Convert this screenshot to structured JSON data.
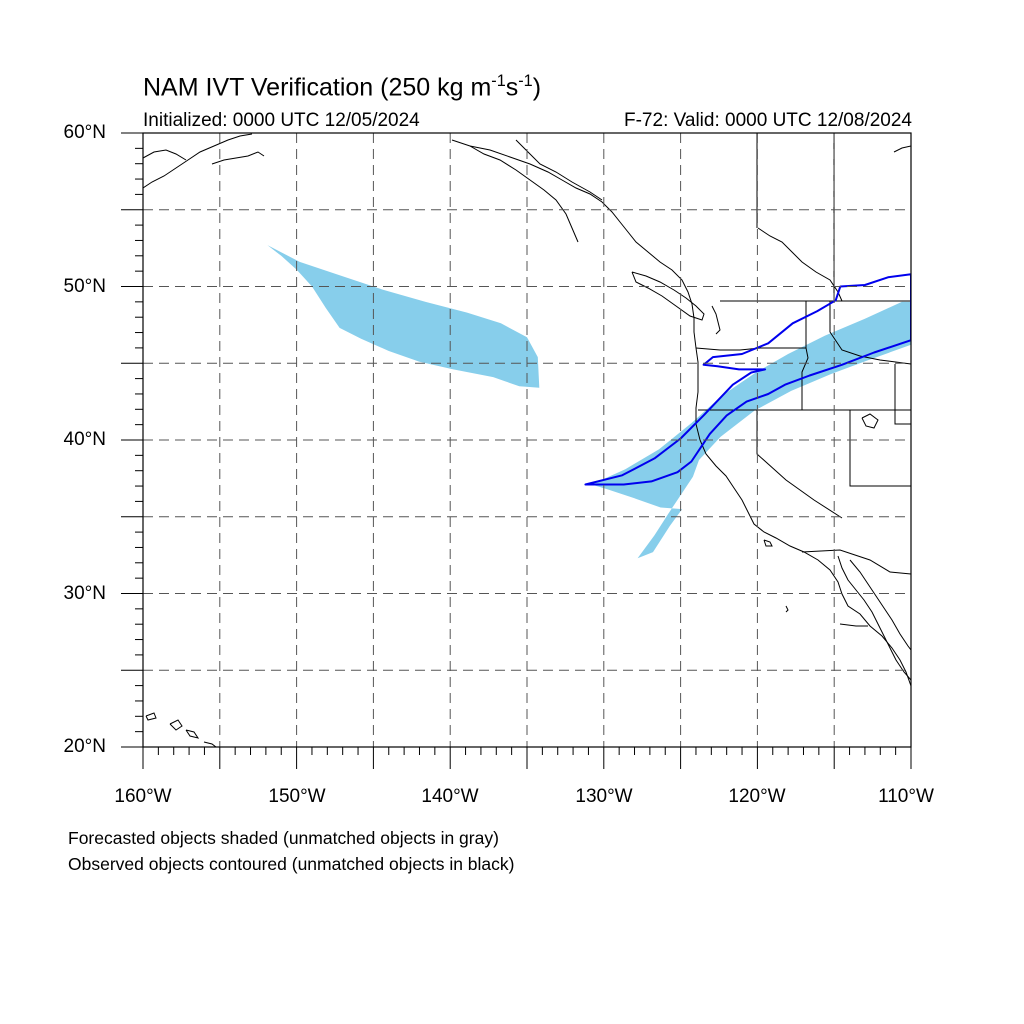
{
  "title": {
    "main": "NAM IVT Verification (250 kg m",
    "sup1": "-1",
    "mid": "s",
    "sup2": "-1",
    "end": ")"
  },
  "initialized": "Initialized: 0000 UTC 12/05/2024",
  "valid": "F-72: Valid: 0000 UTC 12/08/2024",
  "lat_labels": [
    "60°N",
    "50°N",
    "40°N",
    "30°N",
    "20°N"
  ],
  "lon_labels": [
    "160°W",
    "150°W",
    "140°W",
    "130°W",
    "120°W",
    "110°W"
  ],
  "footnotes": [
    "Forecasted objects shaded (unmatched objects in gray)",
    "Observed objects contoured (unmatched objects in black)"
  ],
  "map": {
    "lon_range": [
      -160,
      -110
    ],
    "lat_range": [
      20,
      60
    ],
    "grid_lons": [
      -155,
      -150,
      -145,
      -140,
      -135,
      -130,
      -125,
      -120,
      -115
    ],
    "grid_lats": [
      25,
      30,
      35,
      40,
      45,
      50,
      55
    ],
    "colors": {
      "forecast_fill": "#87ceeb",
      "observed_contour": "#0000ee",
      "coastline": "#000000",
      "grid": "#555555"
    },
    "forecast_objects": [
      {
        "name": "north-pacific-forecast-object",
        "points": [
          [
            -151.9,
            52.7
          ],
          [
            -149.8,
            51.6
          ],
          [
            -147.1,
            50.7
          ],
          [
            -144.4,
            49.8
          ],
          [
            -141.6,
            49.0
          ],
          [
            -138.9,
            48.3
          ],
          [
            -136.7,
            47.6
          ],
          [
            -135.0,
            46.7
          ],
          [
            -134.3,
            45.4
          ],
          [
            -134.2,
            43.4
          ],
          [
            -135.5,
            43.5
          ],
          [
            -137.2,
            44.1
          ],
          [
            -139.8,
            44.6
          ],
          [
            -142.0,
            45.1
          ],
          [
            -144.0,
            45.8
          ],
          [
            -145.8,
            46.6
          ],
          [
            -147.2,
            47.3
          ],
          [
            -148.1,
            48.6
          ],
          [
            -149.0,
            50.0
          ],
          [
            -150.0,
            51.1
          ],
          [
            -151.0,
            52.0
          ]
        ]
      },
      {
        "name": "atmospheric-river-forecast-object",
        "points": [
          [
            -130.8,
            37.1
          ],
          [
            -128.6,
            38.1
          ],
          [
            -126.4,
            39.4
          ],
          [
            -124.3,
            41.1
          ],
          [
            -122.3,
            42.9
          ],
          [
            -120.1,
            44.4
          ],
          [
            -118.0,
            45.6
          ],
          [
            -115.6,
            46.8
          ],
          [
            -113.0,
            47.9
          ],
          [
            -110.6,
            49.0
          ],
          [
            -110.0,
            49.0
          ],
          [
            -110.0,
            46.2
          ],
          [
            -112.8,
            45.2
          ],
          [
            -115.2,
            44.3
          ],
          [
            -117.8,
            43.2
          ],
          [
            -120.2,
            41.9
          ],
          [
            -122.4,
            40.2
          ],
          [
            -123.8,
            38.7
          ],
          [
            -124.2,
            37.6
          ],
          [
            -125.0,
            36.4
          ],
          [
            -125.8,
            35.2
          ],
          [
            -126.7,
            33.8
          ],
          [
            -127.8,
            32.3
          ],
          [
            -126.8,
            32.7
          ],
          [
            -125.7,
            34.4
          ],
          [
            -124.9,
            35.5
          ],
          [
            -126.3,
            35.6
          ],
          [
            -128.0,
            36.2
          ],
          [
            -129.8,
            36.8
          ]
        ]
      }
    ],
    "observed_objects": [
      {
        "name": "observed-ar-contour",
        "points": [
          [
            -131.2,
            37.1
          ],
          [
            -128.8,
            37.7
          ],
          [
            -126.7,
            38.8
          ],
          [
            -125.0,
            40.1
          ],
          [
            -123.5,
            41.6
          ],
          [
            -121.6,
            43.6
          ],
          [
            -120.4,
            44.4
          ],
          [
            -119.5,
            44.6
          ],
          [
            -121.2,
            44.6
          ],
          [
            -122.6,
            44.8
          ],
          [
            -123.5,
            44.9
          ],
          [
            -122.9,
            45.4
          ],
          [
            -121.0,
            45.6
          ],
          [
            -119.3,
            46.3
          ],
          [
            -117.7,
            47.6
          ],
          [
            -116.1,
            48.4
          ],
          [
            -114.9,
            49.1
          ],
          [
            -114.6,
            50.0
          ],
          [
            -113.0,
            50.1
          ],
          [
            -111.5,
            50.6
          ],
          [
            -110.0,
            50.8
          ],
          [
            -110.0,
            46.5
          ],
          [
            -112.4,
            45.7
          ],
          [
            -114.5,
            44.9
          ],
          [
            -116.6,
            44.2
          ],
          [
            -118.2,
            43.6
          ],
          [
            -119.3,
            43.0
          ],
          [
            -120.7,
            42.5
          ],
          [
            -122.0,
            41.6
          ],
          [
            -123.1,
            40.4
          ],
          [
            -124.3,
            38.6
          ],
          [
            -125.2,
            37.9
          ],
          [
            -126.9,
            37.3
          ],
          [
            -128.7,
            37.1
          ]
        ]
      }
    ]
  }
}
